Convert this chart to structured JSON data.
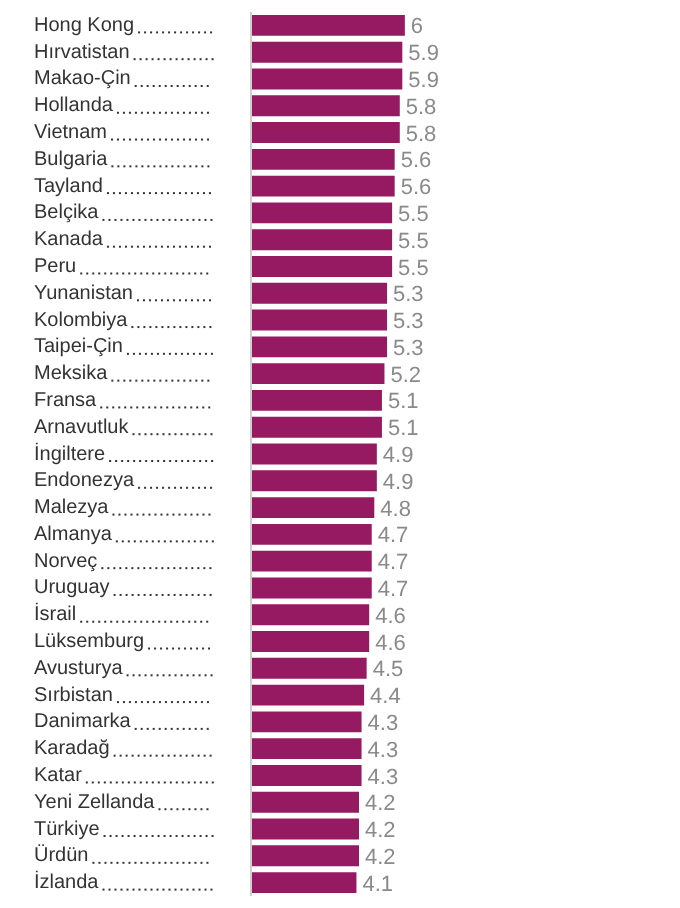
{
  "chart_data": {
    "type": "bar",
    "orientation": "horizontal",
    "data_labels": true,
    "grid": false,
    "legend": false,
    "categories": [
      "Hong Kong",
      "Hırvatistan",
      "Makao-Çin",
      "Hollanda",
      "Vietnam",
      "Bulgaria",
      "Tayland",
      "Belçika",
      "Kanada",
      "Peru",
      "Yunanistan",
      "Kolombiya",
      "Taipei-Çin",
      "Meksika",
      "Fransa",
      "Arnavutluk",
      "İngiltere",
      "Endonezya",
      "Malezya",
      "Almanya",
      "Norveç",
      "Uruguay",
      "İsrail",
      "Lüksemburg",
      "Avusturya",
      "Sırbistan",
      "Danimarka",
      "Karadağ",
      "Katar",
      "Yeni Zellanda",
      "Türkiye",
      "Ürdün",
      "İzlanda"
    ],
    "values": [
      6,
      5.9,
      5.9,
      5.8,
      5.8,
      5.6,
      5.6,
      5.5,
      5.5,
      5.5,
      5.3,
      5.3,
      5.3,
      5.2,
      5.1,
      5.1,
      4.9,
      4.9,
      4.8,
      4.7,
      4.7,
      4.7,
      4.6,
      4.6,
      4.5,
      4.4,
      4.3,
      4.3,
      4.3,
      4.2,
      4.2,
      4.2,
      4.1
    ],
    "color": "#951a62"
  }
}
